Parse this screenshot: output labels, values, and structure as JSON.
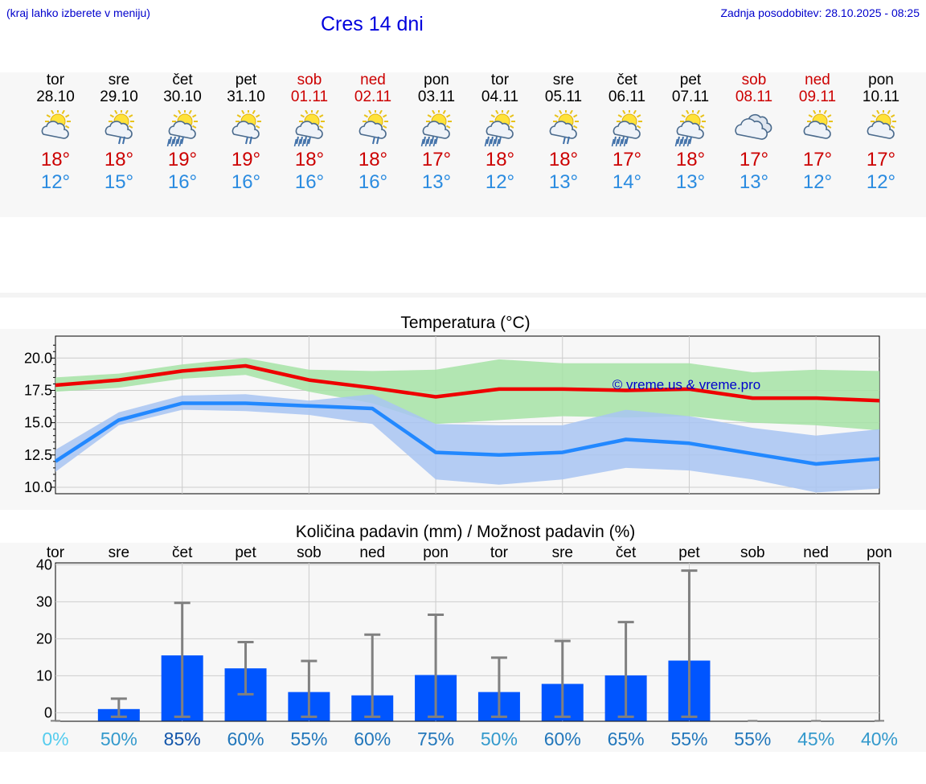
{
  "header": {
    "hint": "(kraj lahko izberete v meniju)",
    "title": "Cres 14 dni",
    "updated": "Zadnja posodobitev: 28.10.2025 - 08:25"
  },
  "days": [
    {
      "name": "tor",
      "date": "28.10",
      "weekend": false,
      "icon": "sun-cloud-icon",
      "tmax": "18°",
      "tmin": "12°"
    },
    {
      "name": "sre",
      "date": "29.10",
      "weekend": false,
      "icon": "sun-cloud-light-rain-icon",
      "tmax": "18°",
      "tmin": "15°"
    },
    {
      "name": "čet",
      "date": "30.10",
      "weekend": false,
      "icon": "sun-cloud-rain-icon",
      "tmax": "19°",
      "tmin": "16°"
    },
    {
      "name": "pet",
      "date": "31.10",
      "weekend": false,
      "icon": "sun-cloud-light-rain-icon",
      "tmax": "19°",
      "tmin": "16°"
    },
    {
      "name": "sob",
      "date": "01.11",
      "weekend": true,
      "icon": "sun-cloud-rain-icon",
      "tmax": "18°",
      "tmin": "16°"
    },
    {
      "name": "ned",
      "date": "02.11",
      "weekend": true,
      "icon": "sun-cloud-light-rain-icon",
      "tmax": "18°",
      "tmin": "16°"
    },
    {
      "name": "pon",
      "date": "03.11",
      "weekend": false,
      "icon": "sun-cloud-rain-icon",
      "tmax": "17°",
      "tmin": "13°"
    },
    {
      "name": "tor",
      "date": "04.11",
      "weekend": false,
      "icon": "sun-cloud-rain-icon",
      "tmax": "18°",
      "tmin": "12°"
    },
    {
      "name": "sre",
      "date": "05.11",
      "weekend": false,
      "icon": "sun-cloud-light-rain-icon",
      "tmax": "18°",
      "tmin": "13°"
    },
    {
      "name": "čet",
      "date": "06.11",
      "weekend": false,
      "icon": "sun-cloud-rain-icon",
      "tmax": "17°",
      "tmin": "14°"
    },
    {
      "name": "pet",
      "date": "07.11",
      "weekend": false,
      "icon": "sun-cloud-rain-icon",
      "tmax": "18°",
      "tmin": "13°"
    },
    {
      "name": "sob",
      "date": "08.11",
      "weekend": true,
      "icon": "cloudy-icon",
      "tmax": "17°",
      "tmin": "13°"
    },
    {
      "name": "ned",
      "date": "09.11",
      "weekend": true,
      "icon": "sun-cloud-icon",
      "tmax": "17°",
      "tmin": "12°"
    },
    {
      "name": "pon",
      "date": "10.11",
      "weekend": false,
      "icon": "sun-cloud-icon",
      "tmax": "17°",
      "tmin": "12°"
    }
  ],
  "colors": {
    "max_line": "#ee0000",
    "max_band": "#a6e3a6",
    "min_line": "#2288ff",
    "min_band": "#a8c4f2",
    "bar": "#0055ff",
    "error": "#808080",
    "pct_shades": [
      "#55ccee",
      "#3399cc",
      "#2277bb",
      "#1155aa"
    ]
  },
  "chart_data": [
    {
      "type": "line",
      "title": "Temperatura (°C)",
      "watermark": "© vreme.us & vreme.pro",
      "x": [
        "28.10",
        "29.10",
        "30.10",
        "31.10",
        "01.11",
        "02.11",
        "03.11",
        "04.11",
        "05.11",
        "06.11",
        "07.11",
        "08.11",
        "09.11",
        "10.11"
      ],
      "yticks": [
        "10.0",
        "12.5",
        "15.0",
        "17.5",
        "20.0"
      ],
      "ylim": [
        9.5,
        21.7
      ],
      "grid": true,
      "series": [
        {
          "role": "max",
          "values": [
            17.9,
            18.3,
            19.0,
            19.4,
            18.3,
            17.7,
            17.0,
            17.6,
            17.6,
            17.5,
            17.6,
            16.9,
            16.9,
            16.7
          ],
          "band_low": [
            17.4,
            17.7,
            18.4,
            18.7,
            17.4,
            16.5,
            14.9,
            15.2,
            15.5,
            15.4,
            15.5,
            15.0,
            14.8,
            14.4
          ],
          "band_high": [
            18.5,
            18.8,
            19.5,
            20.0,
            19.1,
            19.0,
            19.1,
            19.9,
            19.6,
            19.6,
            19.6,
            18.9,
            19.1,
            19.0
          ]
        },
        {
          "role": "min",
          "values": [
            12.0,
            15.2,
            16.5,
            16.5,
            16.3,
            16.1,
            12.7,
            12.5,
            12.7,
            13.7,
            13.4,
            12.6,
            11.8,
            12.2
          ],
          "band_low": [
            11.2,
            14.8,
            16.0,
            15.9,
            15.6,
            14.9,
            10.6,
            10.2,
            10.6,
            11.5,
            11.3,
            10.6,
            9.6,
            9.9
          ],
          "band_high": [
            12.9,
            15.8,
            17.1,
            17.2,
            16.7,
            17.2,
            14.9,
            14.8,
            14.8,
            16.0,
            15.5,
            14.6,
            14.0,
            14.5
          ]
        }
      ]
    },
    {
      "type": "bar",
      "title": "Količina padavin (mm) / Možnost padavin (%)",
      "categories": [
        "tor",
        "sre",
        "čet",
        "pet",
        "sob",
        "ned",
        "pon",
        "tor",
        "sre",
        "čet",
        "pet",
        "sob",
        "ned",
        "pon"
      ],
      "values": [
        0,
        1,
        15.5,
        12,
        5.6,
        4.7,
        10.2,
        5.6,
        7.8,
        10.1,
        14.1,
        0,
        0,
        0
      ],
      "err_low": [
        0,
        0,
        0,
        5,
        0,
        0,
        0,
        0,
        0,
        0,
        0,
        0,
        0,
        0
      ],
      "err_high": [
        0,
        3.8,
        29.7,
        19.1,
        14.0,
        21.1,
        26.5,
        14.9,
        19.4,
        24.5,
        38.4,
        0,
        0,
        0
      ],
      "yticks": [
        "0",
        "10",
        "20",
        "30",
        "40"
      ],
      "ylim": [
        -2.3,
        40.5
      ],
      "probability": [
        "0%",
        "50%",
        "85%",
        "60%",
        "55%",
        "60%",
        "75%",
        "50%",
        "60%",
        "65%",
        "55%",
        "55%",
        "45%",
        "40%"
      ],
      "prob_shade": [
        0,
        1,
        3,
        2,
        2,
        2,
        2,
        1,
        2,
        2,
        2,
        2,
        1,
        1
      ],
      "grid": true
    }
  ]
}
